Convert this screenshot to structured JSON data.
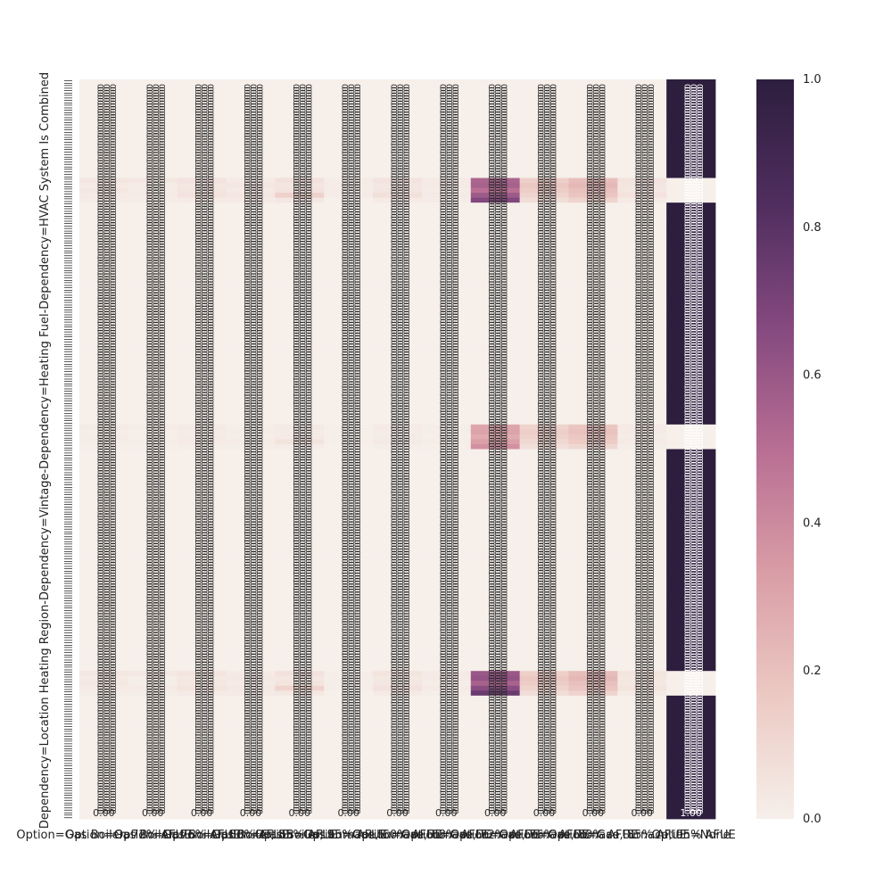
{
  "chart_data": {
    "type": "heatmap",
    "title": "",
    "xlabel": "",
    "ylabel": "Dependency=Location Heating Region-Dependency=Vintage-Dependency=Heating Fuel-Dependency=HVAC System Is Combined",
    "x_tick_labels": [
      "Option=Gas Boiler, 72% AFUE",
      "Option=Gas Boiler, 76% AFUE",
      "Option=Gas Boiler, 80% AFUE",
      "Option=Gas Boiler, 85% AFUE",
      "Option=Gas Boiler, 95% AFUE",
      "Option=Gas Furnace, 60% AFUE",
      "Option=Gas Furnace, 68% AFUE",
      "Option=Gas Furnace, 72% AFUE",
      "Option=Gas Furnace, 76% AFUE",
      "Option=Gas Furnace, 80% AFUE",
      "Option=Gas Furnace, 85% AFUE",
      "Option=Gas Furnace, 95% AFUE",
      "Option=None"
    ],
    "row_count": 150,
    "band_rows": [
      [
        {
          "cols": [
            0,
            1,
            2,
            3,
            4,
            5,
            6,
            7,
            8,
            9,
            10,
            11
          ],
          "values": [
            0.04,
            0.03,
            0.05,
            0.02,
            0.06,
            0.01,
            0.05,
            0.02,
            0.6,
            0.14,
            0.21,
            0.05
          ]
        },
        {
          "none": 0.0
        }
      ],
      [
        {
          "values": [
            0.02,
            0.01,
            0.03,
            0.03,
            0.04,
            0.01,
            0.03,
            0.02,
            0.62,
            0.17,
            0.23,
            0.04
          ]
        },
        {
          "none": 0.0
        }
      ],
      [
        {
          "values": [
            0.03,
            0.01,
            0.04,
            0.02,
            0.05,
            0.01,
            0.04,
            0.01,
            0.55,
            0.15,
            0.2,
            0.03
          ]
        },
        {
          "none": 0.0
        }
      ],
      [
        {
          "values": [
            0.02,
            0.02,
            0.05,
            0.03,
            0.12,
            0.01,
            0.06,
            0.02,
            0.65,
            0.12,
            0.18,
            0.05
          ]
        },
        {
          "none": 0.0
        }
      ],
      [
        {
          "values": [
            0.01,
            0.01,
            0.02,
            0.02,
            0.03,
            0.0,
            0.02,
            0.01,
            0.75,
            0.08,
            0.12,
            0.02
          ]
        },
        {
          "none": 0.0
        }
      ]
    ],
    "band_start_rows": [
      20,
      70,
      120
    ],
    "band_variants": [
      [
        0.9,
        1.0,
        1.1
      ],
      [
        0.5,
        0.85,
        0.45
      ],
      [
        1.0,
        1.0,
        1.0
      ]
    ],
    "colorbar": {
      "min": 0.0,
      "max": 1.0,
      "ticks": [
        "0.0",
        "0.2",
        "0.4",
        "0.6",
        "0.8",
        "1.0"
      ]
    },
    "colormap": [
      "#f6efea",
      "#ecc9c3",
      "#d99da6",
      "#b86e93",
      "#84497f",
      "#4f2d5e",
      "#2d1e3e"
    ]
  }
}
